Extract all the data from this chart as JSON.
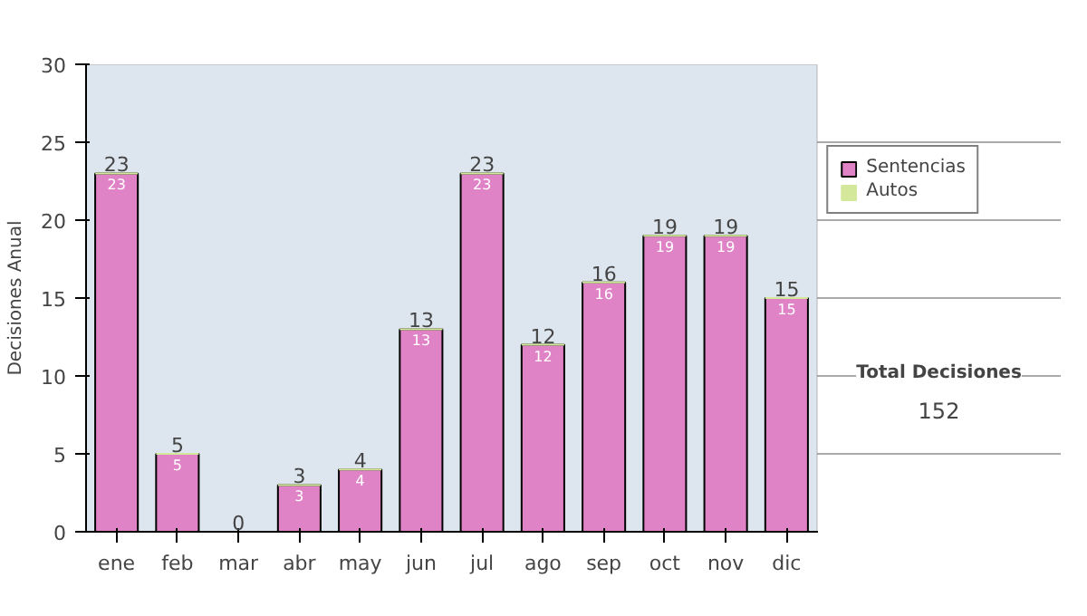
{
  "chart_data": {
    "type": "bar",
    "stacked": true,
    "ylabel": "Decisiones Anual",
    "categories": [
      "ene",
      "feb",
      "mar",
      "abr",
      "may",
      "jun",
      "jul",
      "ago",
      "sep",
      "oct",
      "nov",
      "dic"
    ],
    "series": [
      {
        "name": "Sentencias",
        "color": "#e083c6",
        "values": [
          23,
          5,
          0,
          3,
          4,
          13,
          23,
          12,
          16,
          19,
          19,
          15
        ],
        "value_labels": [
          "23",
          "5",
          null,
          "3",
          "4",
          "13",
          "23",
          "12",
          "16",
          "19",
          "19",
          "15"
        ]
      },
      {
        "name": "Autos",
        "color": "#d4e89c",
        "values": [
          0,
          0,
          0,
          0,
          0,
          0,
          0,
          0,
          0,
          0,
          0,
          0
        ]
      }
    ],
    "totals": [
      "23",
      "5",
      "0",
      "3",
      "4",
      "13",
      "23",
      "12",
      "16",
      "19",
      "19",
      "15"
    ],
    "ylim": [
      0,
      30
    ],
    "yticks": [
      0,
      5,
      10,
      15,
      20,
      25,
      30
    ],
    "grid": "y",
    "legend": "right",
    "annotations": [
      "Total Decisiones",
      "152"
    ]
  }
}
